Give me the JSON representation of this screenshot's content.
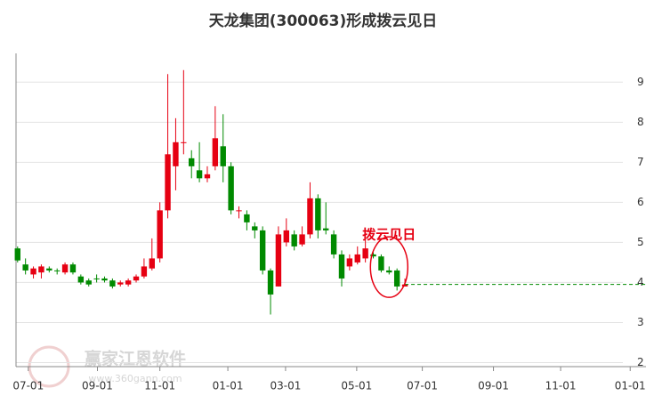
{
  "chart_data": {
    "type": "candlestick",
    "title": "天龙集团(300063)形成拨云见日",
    "annotation": "拨云见日",
    "watermark": {
      "text": "赢家江恩软件",
      "url": "www.360gann.com"
    },
    "up_color": "#e60012",
    "down_color": "#008a00",
    "grid": true,
    "open": [
      4.85,
      4.45,
      4.2,
      4.25,
      4.35,
      4.3,
      4.25,
      4.45,
      4.15,
      4.05,
      4.1,
      4.1,
      4.05,
      3.95,
      3.95,
      4.05,
      4.15,
      4.35,
      4.6,
      5.8,
      6.9,
      7.5,
      7.1,
      6.8,
      6.6,
      6.9,
      7.4,
      6.9,
      5.8,
      5.7,
      5.4,
      5.3,
      4.3,
      3.9,
      5.0,
      5.2,
      4.95,
      5.2,
      6.1,
      5.35,
      5.2,
      4.7,
      4.4,
      4.5,
      4.6,
      4.7,
      4.65,
      4.3,
      4.3,
      3.9
    ],
    "high": [
      4.9,
      4.6,
      4.4,
      4.45,
      4.4,
      4.35,
      4.5,
      4.5,
      4.2,
      4.1,
      4.2,
      4.15,
      4.1,
      4.05,
      4.1,
      4.2,
      4.6,
      5.1,
      6.0,
      9.2,
      8.1,
      9.3,
      7.3,
      7.5,
      6.9,
      8.4,
      8.2,
      7.0,
      5.9,
      5.8,
      5.5,
      5.4,
      4.35,
      5.4,
      5.6,
      5.3,
      5.4,
      6.5,
      6.2,
      6.0,
      5.3,
      4.8,
      4.7,
      4.9,
      5.1,
      4.75,
      4.7,
      4.4,
      4.35,
      4.1
    ],
    "low": [
      4.5,
      4.2,
      4.1,
      4.1,
      4.25,
      4.2,
      4.2,
      4.2,
      3.95,
      3.9,
      4.0,
      4.0,
      3.85,
      3.9,
      3.9,
      4.0,
      4.1,
      4.3,
      4.5,
      5.6,
      6.3,
      7.2,
      6.6,
      6.5,
      6.5,
      6.8,
      6.5,
      5.7,
      5.6,
      5.3,
      5.1,
      4.2,
      3.2,
      3.9,
      4.9,
      4.8,
      4.9,
      5.1,
      5.1,
      5.2,
      4.6,
      3.9,
      4.3,
      4.45,
      4.5,
      4.6,
      4.25,
      4.2,
      3.8,
      3.9
    ],
    "close": [
      4.55,
      4.3,
      4.35,
      4.4,
      4.3,
      4.28,
      4.45,
      4.25,
      4.0,
      3.95,
      4.08,
      4.05,
      3.9,
      4.0,
      4.05,
      4.15,
      4.4,
      4.6,
      5.8,
      7.2,
      7.5,
      7.5,
      6.9,
      6.6,
      6.7,
      7.6,
      6.9,
      5.8,
      5.8,
      5.5,
      5.3,
      4.3,
      3.7,
      5.2,
      5.3,
      4.9,
      5.2,
      6.1,
      5.3,
      5.3,
      4.7,
      4.1,
      4.6,
      4.7,
      4.85,
      4.65,
      4.3,
      4.25,
      3.9,
      3.95
    ],
    "xlim": [
      -0.2,
      79.5
    ],
    "xticks": [
      {
        "value": 1.35,
        "label": "07-01"
      },
      {
        "value": 10.1,
        "label": "09-01"
      },
      {
        "value": 18,
        "label": "11-01"
      },
      {
        "value": 26.6,
        "label": "01-01"
      },
      {
        "value": 33.9,
        "label": "03-01"
      },
      {
        "value": 42.9,
        "label": "05-01"
      },
      {
        "value": 51.2,
        "label": "07-01"
      },
      {
        "value": 60.2,
        "label": "09-01"
      },
      {
        "value": 68.7,
        "label": "11-01"
      },
      {
        "value": 77.5,
        "label": "01-01"
      }
    ],
    "ylim": [
      1.9,
      10.05
    ],
    "yticks": [
      2,
      3,
      4,
      5,
      6,
      7,
      8,
      9
    ]
  }
}
